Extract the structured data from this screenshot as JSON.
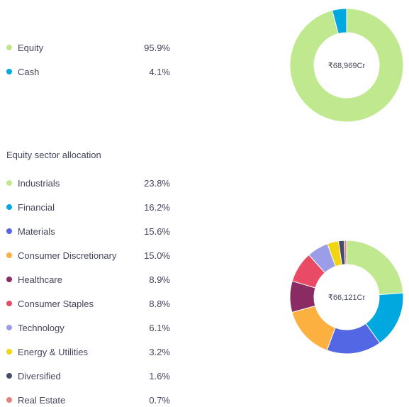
{
  "asset_allocation": {
    "items": [
      {
        "label": "Equity",
        "value": "95.9%",
        "pct": 95.9,
        "color": "#c0e88f"
      },
      {
        "label": "Cash",
        "value": "4.1%",
        "pct": 4.1,
        "color": "#00a8e0"
      }
    ],
    "total": "₹68,969Cr"
  },
  "sector_allocation": {
    "title": "Equity sector allocation",
    "items": [
      {
        "label": "Industrials",
        "value": "23.8%",
        "pct": 23.8,
        "color": "#c0e88f"
      },
      {
        "label": "Financial",
        "value": "16.2%",
        "pct": 16.2,
        "color": "#00a8e0"
      },
      {
        "label": "Materials",
        "value": "15.6%",
        "pct": 15.6,
        "color": "#5367e4"
      },
      {
        "label": "Consumer Discretionary",
        "value": "15.0%",
        "pct": 15.0,
        "color": "#fcb040"
      },
      {
        "label": "Healthcare",
        "value": "8.9%",
        "pct": 8.9,
        "color": "#8a2c63"
      },
      {
        "label": "Consumer Staples",
        "value": "8.8%",
        "pct": 8.8,
        "color": "#e94b65"
      },
      {
        "label": "Technology",
        "value": "6.1%",
        "pct": 6.1,
        "color": "#9b9de8"
      },
      {
        "label": "Energy & Utilities",
        "value": "3.2%",
        "pct": 3.2,
        "color": "#f3d411"
      },
      {
        "label": "Diversified",
        "value": "1.6%",
        "pct": 1.6,
        "color": "#454b6b"
      },
      {
        "label": "Real Estate",
        "value": "0.7%",
        "pct": 0.7,
        "color": "#e6817f"
      }
    ],
    "total": "₹66,121Cr"
  },
  "chart_data": [
    {
      "type": "pie",
      "categories": [
        "Equity",
        "Cash"
      ],
      "values": [
        95.9,
        4.1
      ]
    },
    {
      "type": "pie",
      "categories": [
        "Industrials",
        "Financial",
        "Materials",
        "Consumer Discretionary",
        "Healthcare",
        "Consumer Staples",
        "Technology",
        "Energy & Utilities",
        "Diversified",
        "Real Estate"
      ],
      "values": [
        23.8,
        16.2,
        15.6,
        15.0,
        8.9,
        8.8,
        6.1,
        3.2,
        1.6,
        0.7
      ]
    }
  ]
}
